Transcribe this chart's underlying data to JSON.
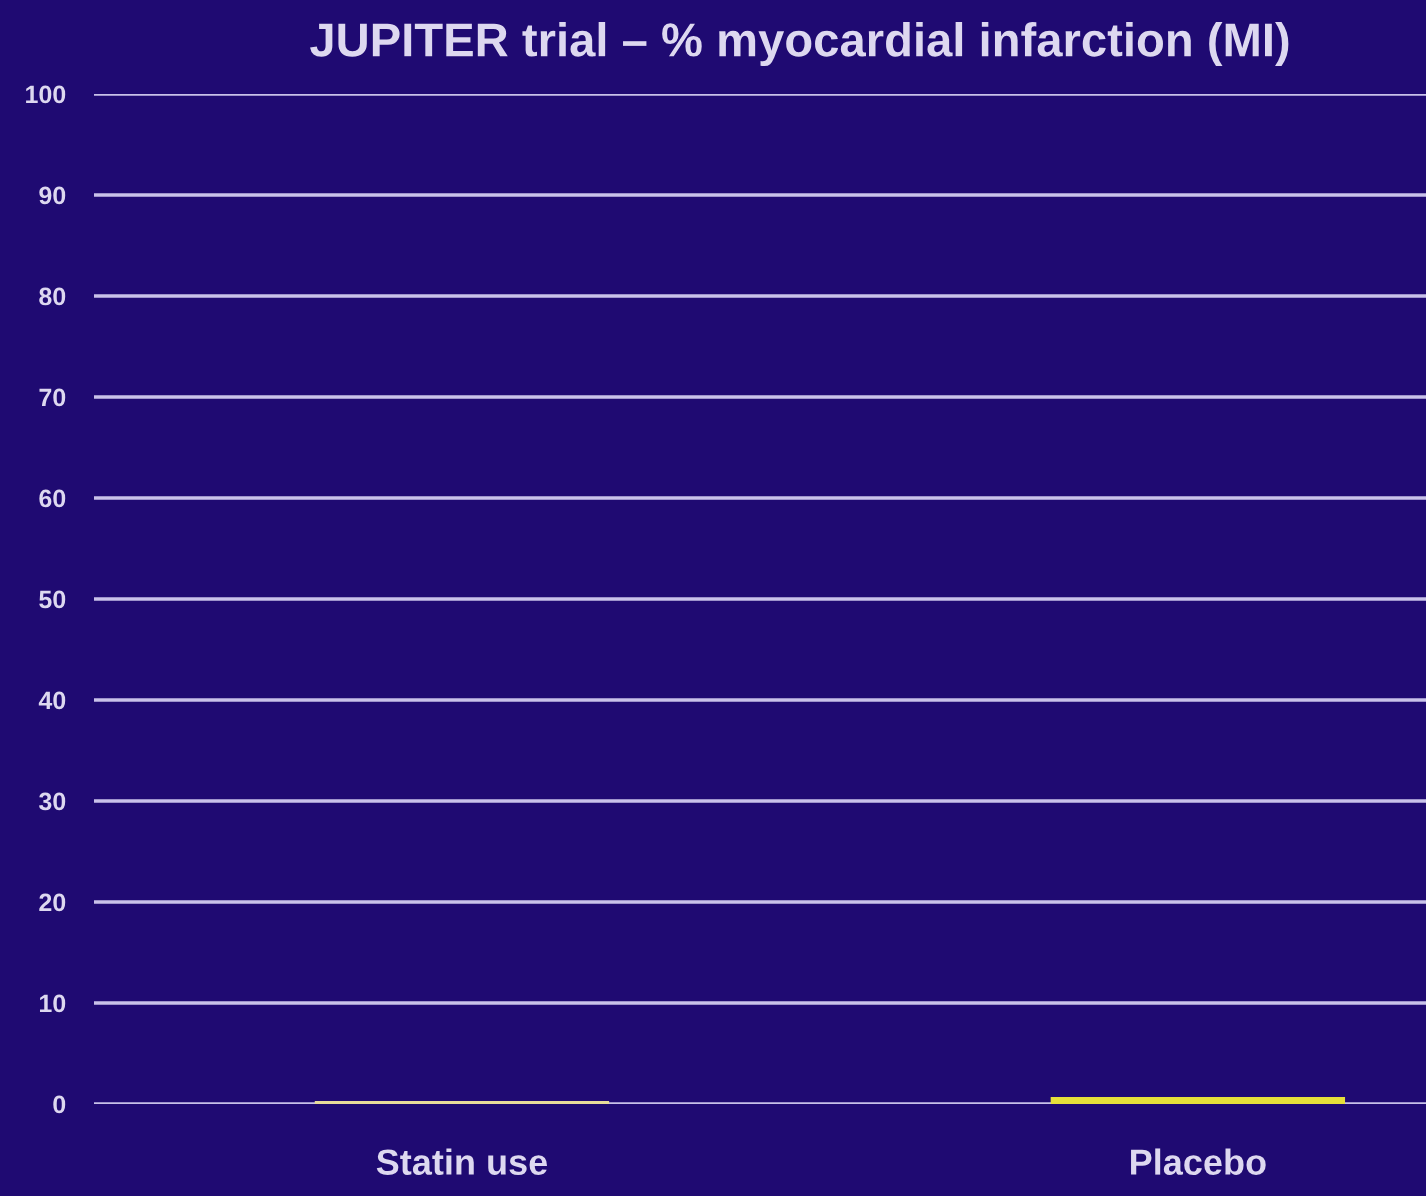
{
  "chart_data": {
    "type": "bar",
    "title": "JUPITER trial – % myocardial infarction (MI)",
    "categories": [
      "Statin use",
      "Placebo"
    ],
    "values": [
      0.3,
      0.7
    ],
    "colors": [
      "#e8dc9a",
      "#e6e03a"
    ],
    "ylim": [
      0,
      100
    ],
    "yticks": [
      0,
      10,
      20,
      30,
      40,
      50,
      60,
      70,
      80,
      90,
      100
    ],
    "grid": "y"
  }
}
